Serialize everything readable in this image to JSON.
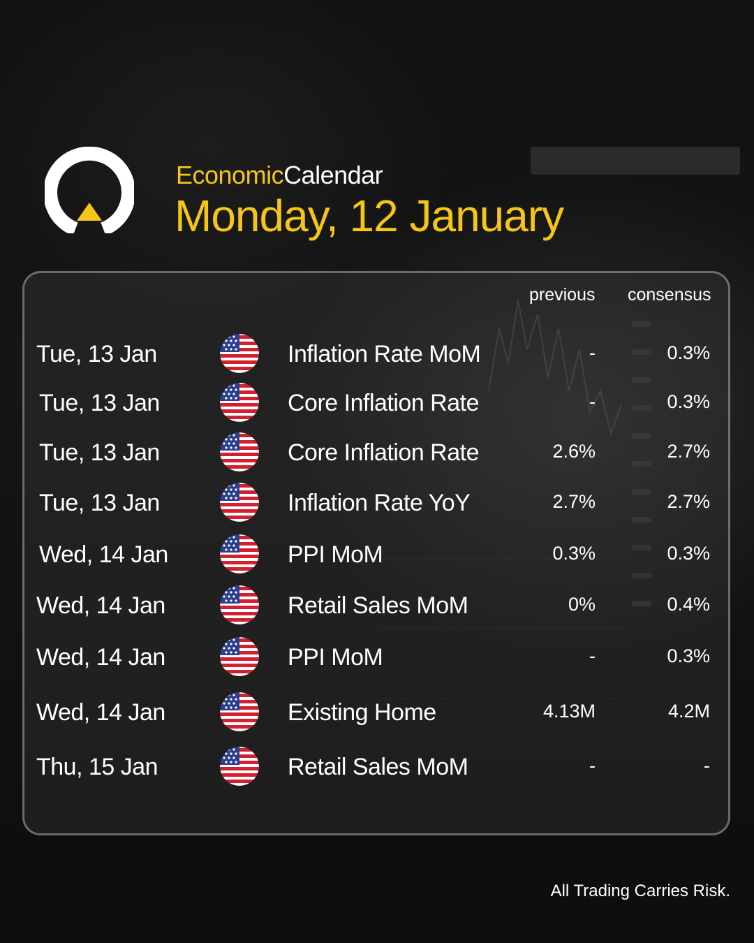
{
  "header": {
    "title_word1": "Economic",
    "title_word2": "Calendar",
    "date": "Monday, 12 January"
  },
  "table": {
    "columns": {
      "previous": "previous",
      "consensus": "consensus"
    },
    "rows": [
      {
        "date": "Tue, 13 Jan",
        "event": "Inflation Rate MoM",
        "previous": "-",
        "consensus": "0.3%"
      },
      {
        "date": "Tue, 13 Jan",
        "event": "Core Inflation Rate",
        "previous": "-",
        "consensus": "0.3%"
      },
      {
        "date": "Tue, 13 Jan",
        "event": "Core Inflation Rate",
        "previous": "2.6%",
        "consensus": "2.7%"
      },
      {
        "date": "Tue, 13 Jan",
        "event": "Inflation Rate YoY",
        "previous": "2.7%",
        "consensus": "2.7%"
      },
      {
        "date": "Wed, 14 Jan",
        "event": "PPI MoM",
        "previous": "0.3%",
        "consensus": "0.3%"
      },
      {
        "date": "Wed, 14 Jan",
        "event": "Retail Sales MoM",
        "previous": "0%",
        "consensus": "0.4%"
      },
      {
        "date": "Wed, 14 Jan",
        "event": "PPI MoM",
        "previous": "-",
        "consensus": "0.3%"
      },
      {
        "date": "Wed, 14 Jan",
        "event": "Existing Home",
        "previous": "4.13M",
        "consensus": "4.2M"
      },
      {
        "date": "Thu, 15 Jan",
        "event": "Retail Sales MoM",
        "previous": "-",
        "consensus": "-"
      }
    ]
  },
  "footer": {
    "disclaimer": "All Trading Carries Risk."
  },
  "colors": {
    "accent": "#f5c518",
    "background": "#0b0b0b",
    "text": "#ffffff"
  },
  "icons": {
    "logo": "brand-logo-icon",
    "flag": "us-flag-icon"
  }
}
